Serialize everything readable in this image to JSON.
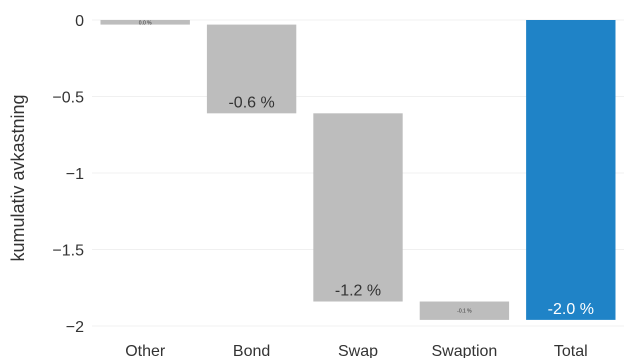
{
  "chart_data": {
    "type": "bar",
    "subtype": "waterfall",
    "title": "",
    "xlabel": "",
    "ylabel": "kumulativ avkastning",
    "ylim": [
      -2.0,
      0.0
    ],
    "yticks": [
      0,
      -0.5,
      -1,
      -1.5,
      -2
    ],
    "ytick_labels": [
      "0",
      "−0.5",
      "−1",
      "−1.5",
      "−2"
    ],
    "grid": true,
    "legend": "none",
    "categories": [
      "Other",
      "Bond",
      "Swap",
      "Swaption",
      "Total"
    ],
    "bars": [
      {
        "category": "Other",
        "base": 0.0,
        "end": -0.03,
        "value": -0.03,
        "label": "0.0 %",
        "label_position": "inside-bottom",
        "color": "#bdbdbd",
        "small_label": true
      },
      {
        "category": "Bond",
        "base": -0.03,
        "end": -0.61,
        "value": -0.58,
        "label": "-0.6 %",
        "label_position": "inside-bottom",
        "color": "#bdbdbd",
        "small_label": false
      },
      {
        "category": "Swap",
        "base": -0.61,
        "end": -1.84,
        "value": -1.23,
        "label": "-1.2 %",
        "label_position": "inside-bottom",
        "color": "#bdbdbd",
        "small_label": false
      },
      {
        "category": "Swaption",
        "base": -1.84,
        "end": -1.96,
        "value": -0.12,
        "label": "-0.1 %",
        "label_position": "inside-bottom",
        "color": "#bdbdbd",
        "small_label": true
      },
      {
        "category": "Total",
        "base": 0.0,
        "end": -1.96,
        "value": -1.96,
        "label": "-2.0 %",
        "label_position": "inside-bottom",
        "color": "#1f83c7",
        "label_color": "#ffffff",
        "small_label": false
      }
    ]
  }
}
